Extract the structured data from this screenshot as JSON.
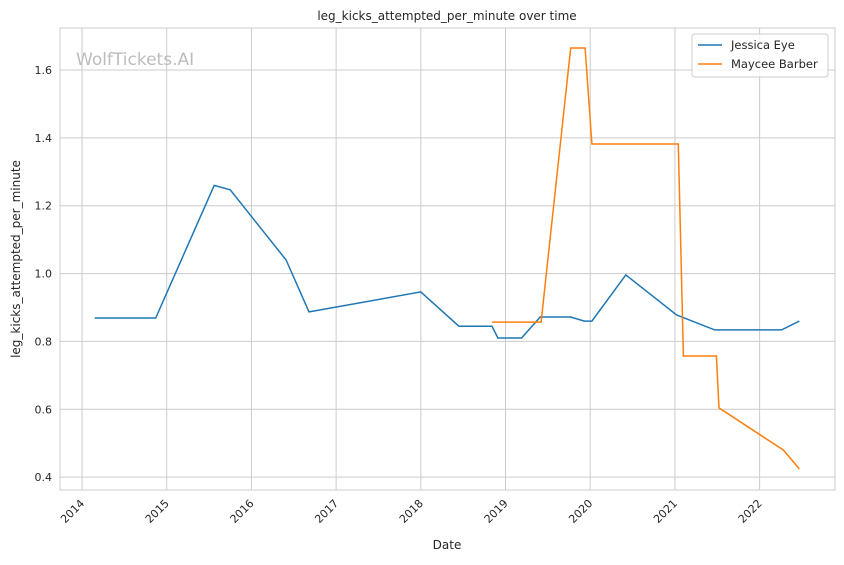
{
  "chart_data": {
    "type": "line",
    "title": "leg_kicks_attempted_per_minute over time",
    "xlabel": "Date",
    "ylabel": "leg_kicks_attempted_per_minute",
    "watermark": "WolfTickets.AI",
    "xlim": [
      2013.74,
      2022.89
    ],
    "ylim": [
      0.362,
      1.724
    ],
    "xticks": [
      2014,
      2015,
      2016,
      2017,
      2018,
      2019,
      2020,
      2021,
      2022
    ],
    "xtick_labels": [
      "2014",
      "2015",
      "2016",
      "2017",
      "2018",
      "2019",
      "2020",
      "2021",
      "2022"
    ],
    "yticks": [
      0.4,
      0.6,
      0.8,
      1.0,
      1.2,
      1.4,
      1.6
    ],
    "ytick_labels": [
      "0.4",
      "0.6",
      "0.8",
      "1.0",
      "1.2",
      "1.4",
      "1.6"
    ],
    "grid": true,
    "legend_position": "top-right",
    "series": [
      {
        "name": "Jessica Eye",
        "color": "#1f77b4",
        "x": [
          2014.15,
          2014.87,
          2015.56,
          2015.75,
          2016.41,
          2016.68,
          2018.0,
          2018.45,
          2018.84,
          2018.91,
          2019.19,
          2019.41,
          2019.77,
          2019.93,
          2020.02,
          2020.42,
          2021.02,
          2021.47,
          2022.26,
          2022.47
        ],
        "y": [
          0.869,
          0.869,
          1.26,
          1.247,
          1.04,
          0.887,
          0.946,
          0.845,
          0.845,
          0.81,
          0.81,
          0.872,
          0.872,
          0.86,
          0.86,
          0.996,
          0.878,
          0.834,
          0.834,
          0.86
        ]
      },
      {
        "name": "Maycee Barber",
        "color": "#ff7f0e",
        "x": [
          2018.84,
          2019.42,
          2019.77,
          2019.94,
          2020.02,
          2021.04,
          2021.1,
          2021.49,
          2021.52,
          2022.28,
          2022.47
        ],
        "y": [
          0.857,
          0.857,
          1.665,
          1.665,
          1.382,
          1.382,
          0.757,
          0.757,
          0.604,
          0.48,
          0.424
        ]
      }
    ]
  }
}
